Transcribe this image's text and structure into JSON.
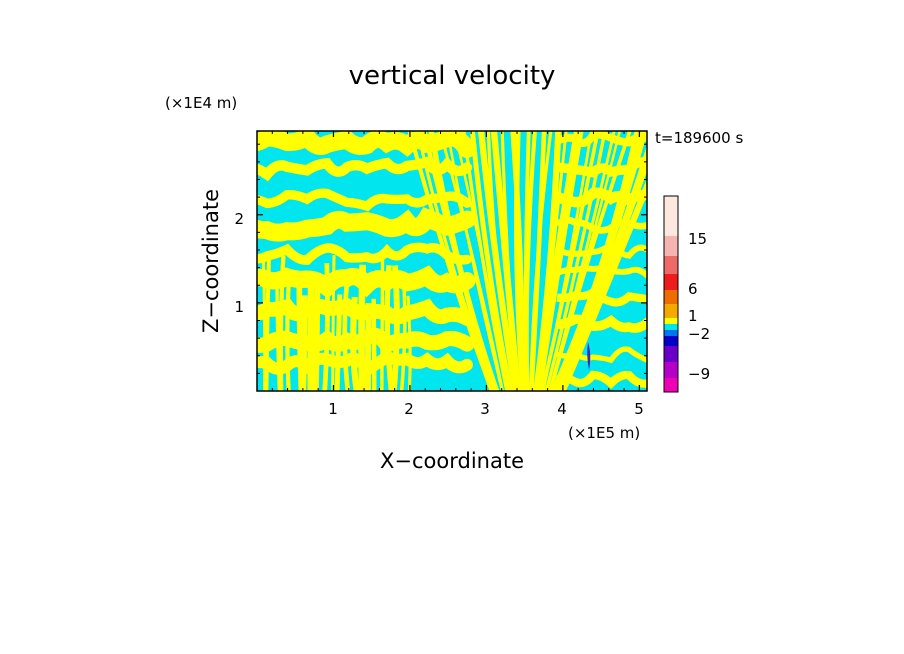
{
  "chart_data": {
    "type": "heatmap",
    "title": "vertical velocity",
    "xlabel": "X−coordinate",
    "ylabel": "Z−coordinate",
    "x_unit": "(×1E5 m)",
    "y_unit": "(×1E4 m)",
    "time_label": "t=189600 s",
    "xlim": [
      0,
      5.1
    ],
    "ylim": [
      0,
      2.95
    ],
    "x_ticks": [
      1,
      2,
      3,
      4,
      5
    ],
    "y_ticks": [
      1,
      2
    ],
    "x_tick_labels": [
      "1",
      "2",
      "3",
      "4",
      "5"
    ],
    "y_tick_labels": [
      "1",
      "2"
    ],
    "colorbar": {
      "labels": [
        "15",
        "6",
        "1",
        "−2",
        "−9"
      ],
      "colors_top_to_bottom": [
        "#fde8e0",
        "#f6b4b0",
        "#ee6a6a",
        "#ee1c1c",
        "#ee6c00",
        "#f5a800",
        "#ffff00",
        "#00e5ee",
        "#0077ee",
        "#0000c8",
        "#6a00c8",
        "#b400c8",
        "#ee00b4"
      ]
    },
    "field_colors": {
      "positive": "#ffff00",
      "negative": "#00e5ee"
    }
  }
}
